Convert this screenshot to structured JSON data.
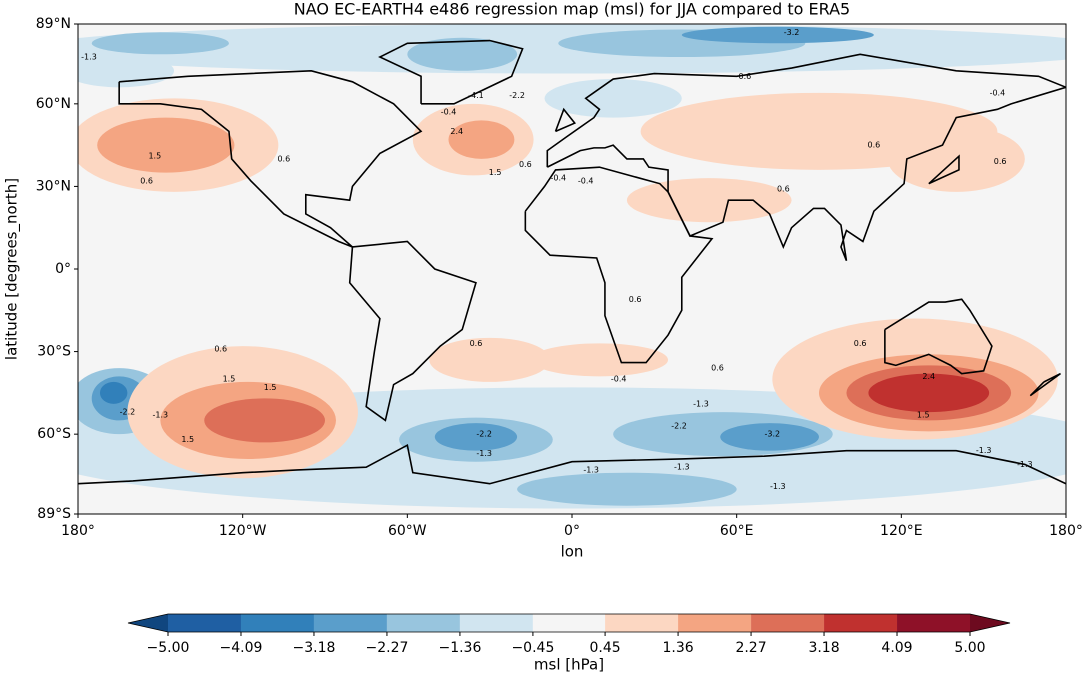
{
  "chart_data": {
    "type": "contour_map",
    "title": "NAO EC-EARTH4 e486 regression map (msl) for JJA compared to ERA5",
    "xlabel": "lon",
    "ylabel": "latitude [degrees_north]",
    "xlim": [
      -180,
      180
    ],
    "ylim": [
      -89,
      89
    ],
    "xticks": [
      {
        "value": -180,
        "label": "180°"
      },
      {
        "value": -120,
        "label": "120°W"
      },
      {
        "value": -60,
        "label": "60°W"
      },
      {
        "value": 0,
        "label": "0°"
      },
      {
        "value": 60,
        "label": "60°E"
      },
      {
        "value": 120,
        "label": "120°E"
      },
      {
        "value": 180,
        "label": "180°"
      }
    ],
    "yticks": [
      {
        "value": 89,
        "label": "89°N"
      },
      {
        "value": 60,
        "label": "60°N"
      },
      {
        "value": 30,
        "label": "30°N"
      },
      {
        "value": 0,
        "label": "0°"
      },
      {
        "value": -30,
        "label": "30°S"
      },
      {
        "value": -60,
        "label": "60°S"
      },
      {
        "value": -89,
        "label": "89°S"
      }
    ],
    "contour_labels": [
      {
        "lon": 80,
        "lat": 86,
        "value": -3.2
      },
      {
        "lon": -176,
        "lat": 77,
        "value": -1.3
      },
      {
        "lon": -35,
        "lat": 63,
        "value": -4.1
      },
      {
        "lon": -20,
        "lat": 63,
        "value": -2.2
      },
      {
        "lon": -45,
        "lat": 57,
        "value": -0.4
      },
      {
        "lon": -42,
        "lat": 50,
        "value": 2.4
      },
      {
        "lon": -28,
        "lat": 35,
        "value": 1.5
      },
      {
        "lon": -17,
        "lat": 38,
        "value": 0.6
      },
      {
        "lon": -152,
        "lat": 41,
        "value": 1.5
      },
      {
        "lon": -155,
        "lat": 32,
        "value": 0.6
      },
      {
        "lon": -105,
        "lat": 40,
        "value": 0.6
      },
      {
        "lon": 23,
        "lat": -11,
        "value": 0.6
      },
      {
        "lon": -35,
        "lat": -27,
        "value": 0.6
      },
      {
        "lon": -128,
        "lat": -29,
        "value": 0.6
      },
      {
        "lon": -125,
        "lat": -40,
        "value": 1.5
      },
      {
        "lon": -110,
        "lat": -43,
        "value": 1.5
      },
      {
        "lon": -140,
        "lat": -62,
        "value": 1.5
      },
      {
        "lon": -162,
        "lat": -52,
        "value": -2.2
      },
      {
        "lon": -150,
        "lat": -53,
        "value": -1.3
      },
      {
        "lon": -32,
        "lat": -60,
        "value": -2.2
      },
      {
        "lon": -32,
        "lat": -67,
        "value": -1.3
      },
      {
        "lon": 17,
        "lat": -40,
        "value": -0.4
      },
      {
        "lon": 47,
        "lat": -49,
        "value": -1.3
      },
      {
        "lon": 39,
        "lat": -57,
        "value": -2.2
      },
      {
        "lon": 73,
        "lat": -60,
        "value": -3.2
      },
      {
        "lon": 7,
        "lat": -73,
        "value": -1.3
      },
      {
        "lon": 40,
        "lat": -72,
        "value": -1.3
      },
      {
        "lon": 75,
        "lat": -79,
        "value": -1.3
      },
      {
        "lon": 150,
        "lat": -66,
        "value": -1.3
      },
      {
        "lon": 165,
        "lat": -71,
        "value": -1.3
      },
      {
        "lon": 130,
        "lat": -39,
        "value": 2.4
      },
      {
        "lon": 128,
        "lat": -53,
        "value": 1.5
      },
      {
        "lon": 105,
        "lat": -27,
        "value": 0.6
      },
      {
        "lon": 53,
        "lat": -36,
        "value": 0.6
      },
      {
        "lon": 156,
        "lat": 39,
        "value": 0.6
      },
      {
        "lon": 110,
        "lat": 45,
        "value": 0.6
      },
      {
        "lon": 77,
        "lat": 29,
        "value": 0.6
      },
      {
        "lon": 63,
        "lat": 70,
        "value": 0.6
      },
      {
        "lon": 5,
        "lat": 32,
        "value": -0.4
      },
      {
        "lon": -5,
        "lat": 33,
        "value": -0.4
      },
      {
        "lon": 155,
        "lat": 64,
        "value": -0.4
      }
    ],
    "colorbar": {
      "label": "msl [hPa]",
      "levels": [
        {
          "value": -5.0,
          "label": "−5.00"
        },
        {
          "value": -4.09,
          "label": "−4.09"
        },
        {
          "value": -3.18,
          "label": "−3.18"
        },
        {
          "value": -2.27,
          "label": "−2.27"
        },
        {
          "value": -1.36,
          "label": "−1.36"
        },
        {
          "value": -0.45,
          "label": "−0.45"
        },
        {
          "value": 0.45,
          "label": "0.45"
        },
        {
          "value": 1.36,
          "label": "1.36"
        },
        {
          "value": 2.27,
          "label": "2.27"
        },
        {
          "value": 3.18,
          "label": "3.18"
        },
        {
          "value": 4.09,
          "label": "4.09"
        },
        {
          "value": 5.0,
          "label": "5.00"
        }
      ],
      "colors": [
        "#1f5fa3",
        "#3180ba",
        "#5a9ecb",
        "#98c5de",
        "#d1e5f0",
        "#f5f5f5",
        "#fcd7c2",
        "#f4a582",
        "#dd6f58",
        "#c0312f",
        "#8e1128"
      ],
      "under_color": "#10467f",
      "over_color": "#6d0a1f"
    }
  }
}
